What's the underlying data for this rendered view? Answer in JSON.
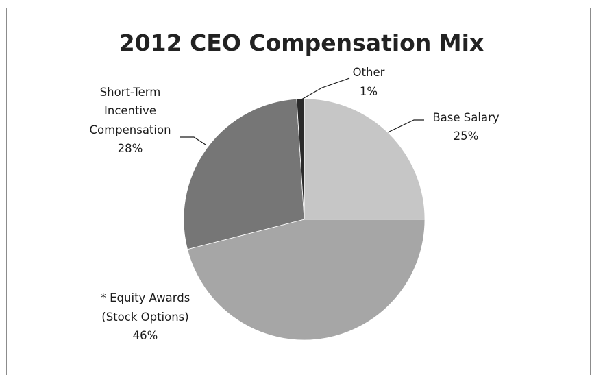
{
  "chart_data": {
    "type": "pie",
    "title": "2012 CEO Compensation Mix",
    "slices": [
      {
        "label": "Base Salary",
        "value": 25,
        "value_label": "25%",
        "color": "#c6c6c6"
      },
      {
        "label": "* Equity Awards (Stock Options)",
        "value": 46,
        "value_label": "46%",
        "color": "#a6a6a6"
      },
      {
        "label": "Short-Term Incentive Compensation",
        "value": 28,
        "value_label": "28%",
        "color": "#767676"
      },
      {
        "label": "Other",
        "value": 1,
        "value_label": "1%",
        "color": "#2a2a2a"
      }
    ],
    "label_lines": {
      "base_salary": [
        "Base Salary",
        "25%"
      ],
      "equity": [
        "*  Equity Awards",
        "(Stock Options)",
        "46%"
      ],
      "short_term": [
        "Short-Term",
        "Incentive",
        "Compensation",
        "28%"
      ],
      "other": [
        "Other",
        "1%"
      ]
    },
    "legend": "none"
  }
}
